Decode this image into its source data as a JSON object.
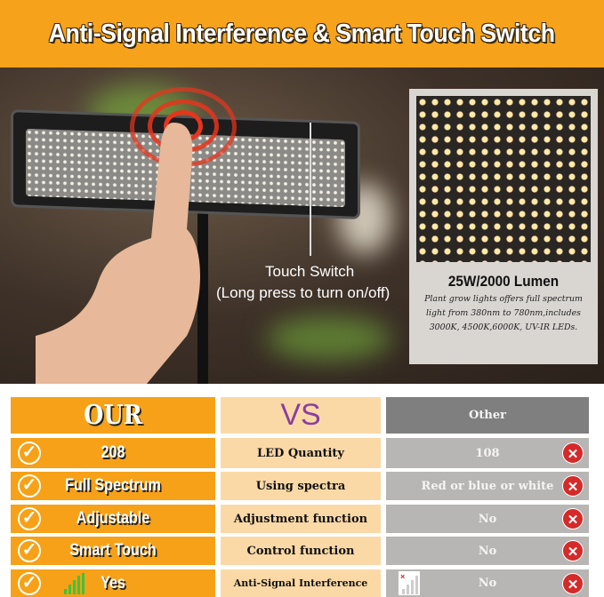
{
  "header": {
    "title": "Anti-Signal Interference & Smart Touch Switch"
  },
  "photo": {
    "touch_switch": "Touch Switch",
    "long_press": "(Long press to turn on/off)"
  },
  "inset": {
    "title": "25W/2000 Lumen",
    "desc": "Plant grow lights offers full spectrum light from 380nm to 780nm,includes 3000K, 4500K,6000K, UV-IR LEDs."
  },
  "table": {
    "head": {
      "ours": "OUR",
      "vs": "VS",
      "other": "Other"
    },
    "rows": [
      {
        "ours": "208",
        "feature": "LED  Quantity",
        "other": "108"
      },
      {
        "ours": "Full Spectrum",
        "feature": "Using spectra",
        "other": "Red or blue or white"
      },
      {
        "ours": "Adjustable",
        "feature": "Adjustment function",
        "other": "No"
      },
      {
        "ours": "Smart Touch",
        "feature": "Control function",
        "other": "No"
      },
      {
        "ours": "Yes",
        "feature": "Anti-Signal Interference",
        "other": "No"
      }
    ]
  },
  "colors": {
    "orange": "#f6a117",
    "peach": "#fbd9a6",
    "gray": "#b8b6b4",
    "red": "#d42a2a",
    "vs_purple": "#8a3fa0"
  }
}
